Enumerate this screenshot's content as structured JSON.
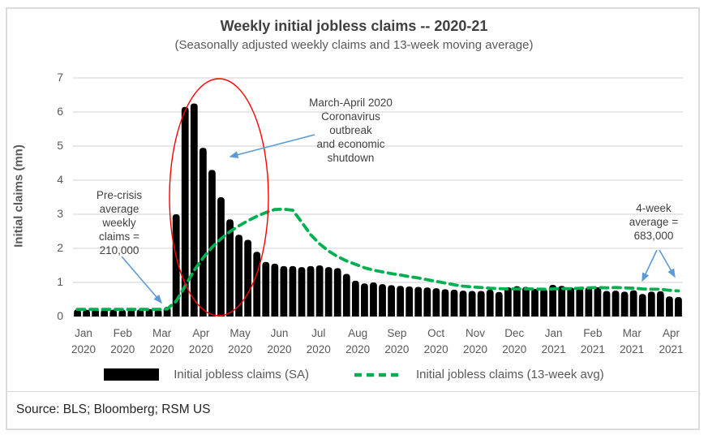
{
  "header": {
    "title": "Weekly initial jobless claims -- 2020-21",
    "subtitle": "(Seasonally adjusted weekly claims and 13-week moving average)"
  },
  "colors": {
    "bars": "#000000",
    "ma_line": "#00B050",
    "arrow": "#5B9BD5",
    "ellipse": "#FF0000",
    "grid": "#D9D9D9",
    "axis_text": "#595959",
    "title_text": "#404040"
  },
  "chart_data": {
    "type": "bar",
    "title": "Weekly initial jobless claims -- 2020-21",
    "subtitle": "(Seasonally adjusted weekly claims and 13-week moving average)",
    "ylabel": "Initial claims (mn)",
    "xlabel": "",
    "ylim": [
      0,
      7
    ],
    "yticks": [
      0,
      1,
      2,
      3,
      4,
      5,
      6,
      7
    ],
    "grid": "horizontal",
    "legend_position": "bottom",
    "month_labels": [
      "Jan\n2020",
      "Feb\n2020",
      "Mar\n2020",
      "Apr\n2020",
      "May\n2020",
      "Jun\n2020",
      "Jul\n2020",
      "Aug\n2020",
      "Sep\n2020",
      "Oct\n2020",
      "Nov\n2020",
      "Dec\n2020",
      "Jan\n2021",
      "Feb\n2021",
      "Mar\n2021",
      "Apr\n2021"
    ],
    "x_unit": "weeks (Jan 2020 - Apr 2021)",
    "series": [
      {
        "name": "Initial jobless claims (SA)",
        "type": "bar",
        "color": "#000000",
        "values": [
          0.21,
          0.2,
          0.22,
          0.21,
          0.2,
          0.2,
          0.22,
          0.21,
          0.22,
          0.21,
          0.28,
          3.0,
          6.15,
          6.25,
          4.95,
          4.3,
          3.5,
          2.85,
          2.4,
          2.25,
          1.9,
          1.6,
          1.55,
          1.48,
          1.48,
          1.45,
          1.48,
          1.5,
          1.45,
          1.42,
          1.25,
          1.05,
          0.97,
          1.0,
          0.95,
          0.92,
          0.9,
          0.88,
          0.87,
          0.85,
          0.83,
          0.8,
          0.79,
          0.76,
          0.75,
          0.75,
          0.79,
          0.72,
          0.86,
          0.89,
          0.87,
          0.81,
          0.81,
          0.93,
          0.9,
          0.85,
          0.84,
          0.86,
          0.86,
          0.75,
          0.76,
          0.73,
          0.77,
          0.66,
          0.73,
          0.74,
          0.59,
          0.57
        ]
      },
      {
        "name": "Initial jobless claims (13-week avg)",
        "type": "dashed-line",
        "color": "#00B050",
        "values": [
          0.21,
          0.21,
          0.21,
          0.21,
          0.21,
          0.21,
          0.21,
          0.21,
          0.21,
          0.21,
          0.22,
          0.45,
          0.89,
          1.35,
          1.72,
          2.03,
          2.28,
          2.49,
          2.66,
          2.81,
          2.94,
          3.05,
          3.14,
          3.15,
          3.12,
          2.77,
          2.4,
          2.13,
          1.92,
          1.76,
          1.63,
          1.53,
          1.43,
          1.36,
          1.31,
          1.26,
          1.22,
          1.17,
          1.13,
          1.08,
          1.03,
          0.98,
          0.93,
          0.89,
          0.87,
          0.85,
          0.83,
          0.82,
          0.81,
          0.81,
          0.81,
          0.81,
          0.8,
          0.81,
          0.82,
          0.82,
          0.83,
          0.84,
          0.85,
          0.84,
          0.85,
          0.84,
          0.83,
          0.81,
          0.8,
          0.8,
          0.77,
          0.75
        ]
      }
    ],
    "annotations": [
      "Pre-crisis average weekly claims = 210,000",
      "March-April 2020 Coronavirus outbreak and economic shutdown",
      "4-week average = 683,000"
    ]
  },
  "annotations": {
    "pre_crisis": "Pre-crisis\naverage\nweekly\nclaims =\n210,000",
    "outbreak": "March-April 2020\nCoronavirus\noutbreak\nand economic\nshutdown",
    "four_week": "4-week\naverage =\n683,000"
  },
  "legend": {
    "bars_label": "Initial jobless claims (SA)",
    "line_label": "Initial jobless claims (13-week avg)"
  },
  "source": "Source: BLS; Bloomberg; RSM US"
}
